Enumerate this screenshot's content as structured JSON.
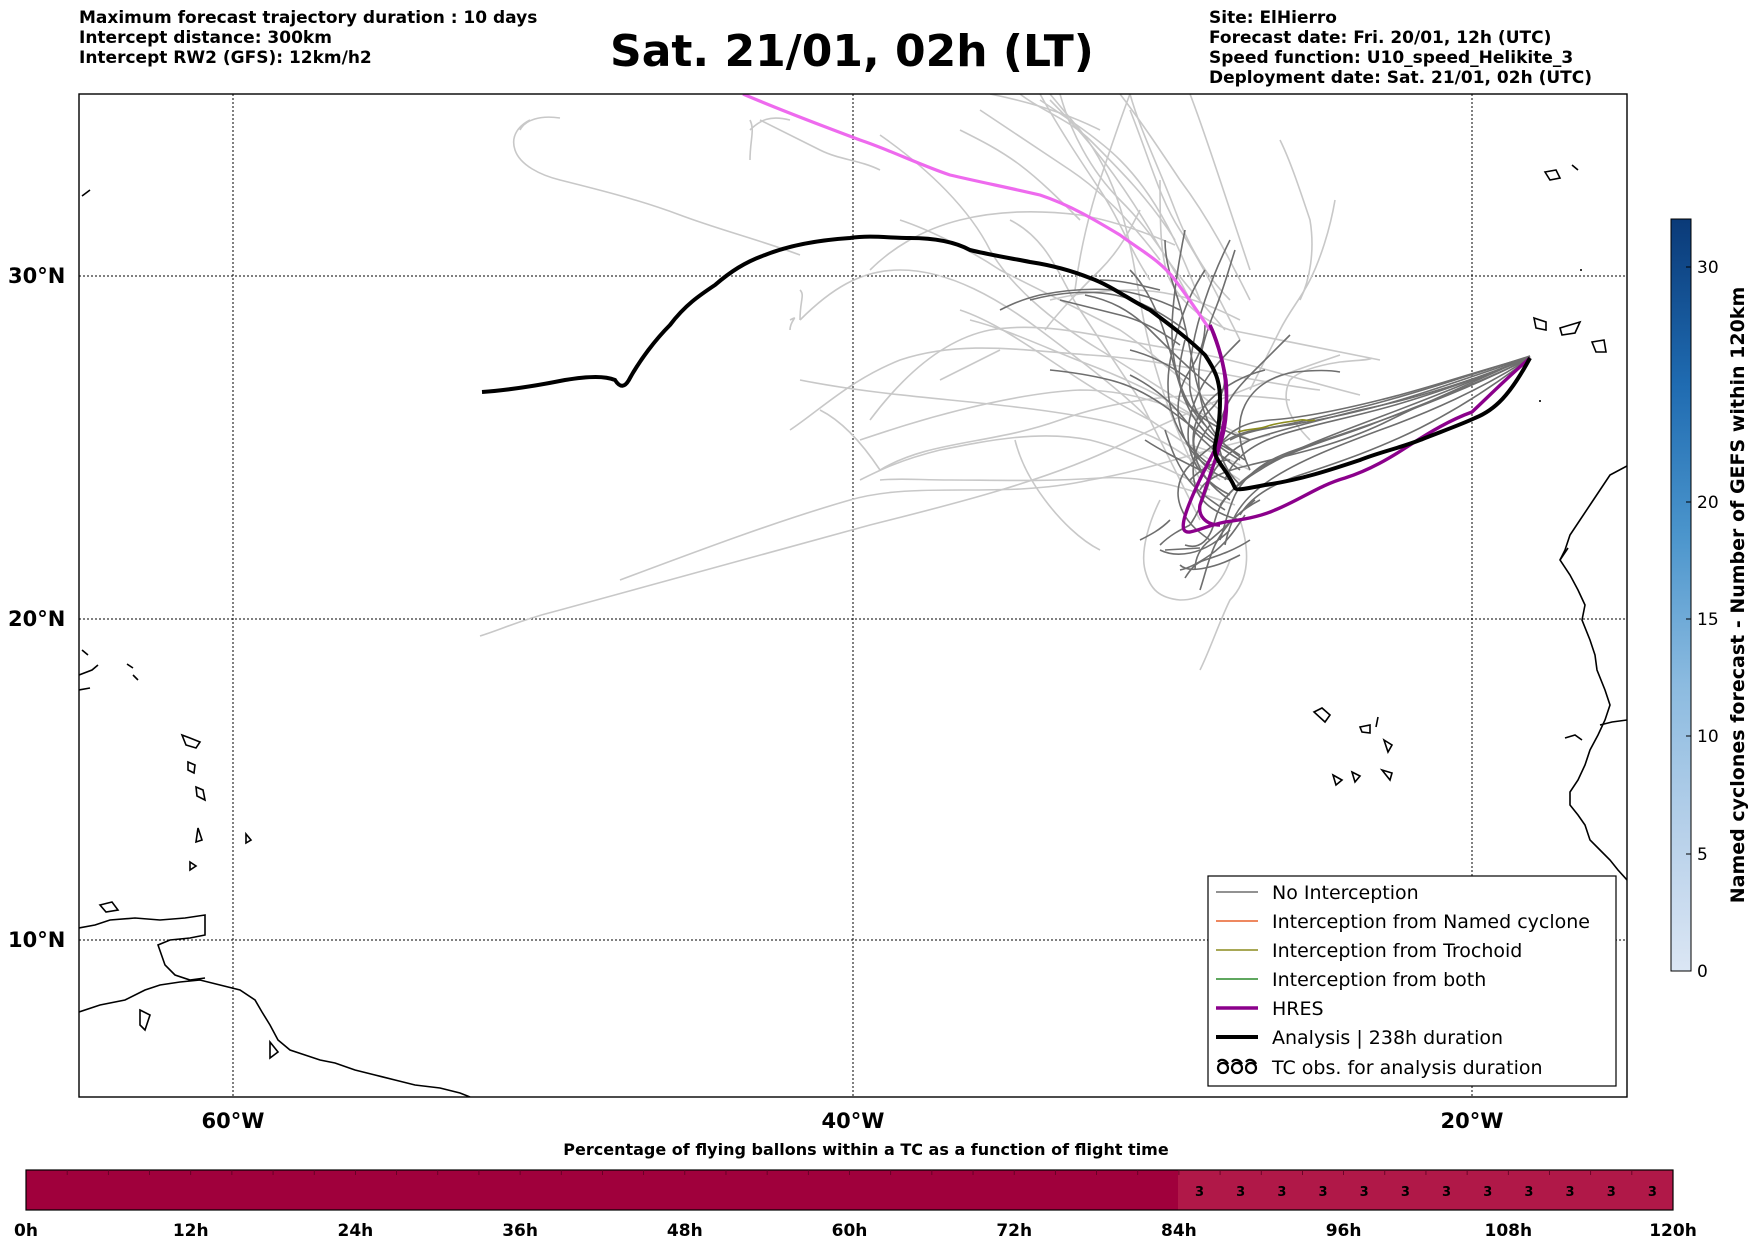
{
  "header_left": {
    "line1": "Maximum forecast trajectory duration : 10 days",
    "line2": "Intercept distance: 300km",
    "line3": "Intercept RW2 (GFS):  12km/h2"
  },
  "title": "Sat. 21/01, 02h (LT)",
  "header_right": {
    "line1": "Site: ElHierro",
    "line2": "Forecast date: Fri. 20/01, 12h (UTC)",
    "line3": "Speed function: U10_speed_Helikite_3",
    "line4": "Deployment date: Sat. 21/01, 02h (UTC)"
  },
  "map": {
    "lat_labels": [
      "30°N",
      "20°N",
      "10°N"
    ],
    "lon_labels": [
      "60°W",
      "40°W",
      "20°W"
    ],
    "gridlines": true,
    "colors": {
      "no_interception": "#6e6e6e",
      "light_traj": "#c8c8c8",
      "named_cyclone": "#e8602c",
      "trochoid": "#8c8c1e",
      "both": "#2a8a2a",
      "hres": "#8b008b",
      "hres_light": "#ee6aee",
      "analysis": "#000000"
    }
  },
  "legend": {
    "items": [
      {
        "label": "No Interception",
        "color": "#6e6e6e"
      },
      {
        "label": "Interception from Named cyclone",
        "color": "#e8602c"
      },
      {
        "label": "Interception from Trochoid",
        "color": "#8c8c1e"
      },
      {
        "label": "Interception from both",
        "color": "#2a8a2a"
      },
      {
        "label": "HRES",
        "color": "#8b008b"
      },
      {
        "label": "Analysis | 238h duration",
        "color": "#000000"
      },
      {
        "label": "TC obs. for analysis duration",
        "icon": "cyclone-symbol-icon"
      }
    ]
  },
  "colorbar": {
    "label": "Named cyclones forecast - Number of GEFS within 120km",
    "ticks": [
      "0",
      "5",
      "10",
      "15",
      "20",
      "30"
    ]
  },
  "bottom_bar": {
    "title": "Percentage of flying ballons within a TC as a function of flight time",
    "dark_color": "#a0003c",
    "light_color": "#b01848",
    "ticks": [
      "0h",
      "12h",
      "24h",
      "36h",
      "48h",
      "60h",
      "72h",
      "84h",
      "96h",
      "108h",
      "120h"
    ],
    "cell_values": [
      "3",
      "3",
      "3",
      "3",
      "3",
      "3",
      "3",
      "3",
      "3",
      "3",
      "3",
      "3"
    ]
  }
}
